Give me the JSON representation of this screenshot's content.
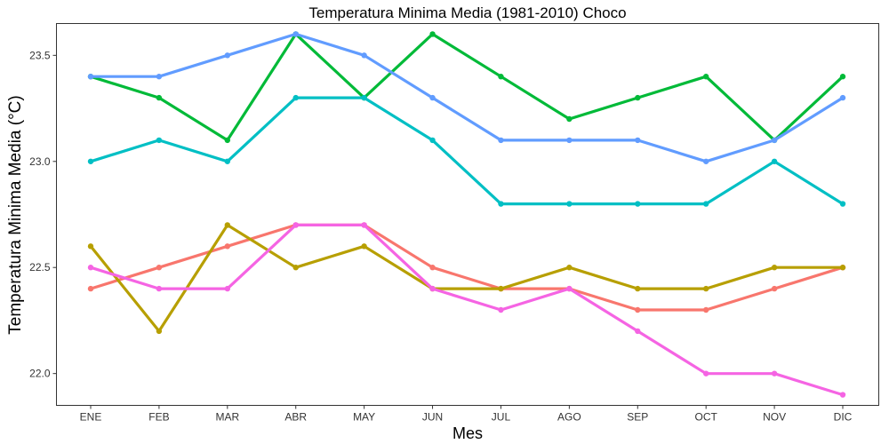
{
  "chart_data": {
    "type": "line",
    "title": "Temperatura Minima Media (1981-2010)  Choco",
    "xlabel": "Mes",
    "ylabel": "Temperatura Minima Media  (°C)",
    "categories": [
      "ENE",
      "FEB",
      "MAR",
      "ABR",
      "MAY",
      "JUN",
      "JUL",
      "AGO",
      "SEP",
      "OCT",
      "NOV",
      "DIC"
    ],
    "ylim": [
      21.85,
      23.65
    ],
    "yticks": [
      22.0,
      22.5,
      23.0,
      23.5
    ],
    "ytick_labels": [
      "22.0",
      "22.5",
      "23.0",
      "23.5"
    ],
    "grid": false,
    "legend": "none",
    "series": [
      {
        "color": "#f8766d",
        "values": [
          22.4,
          22.5,
          22.6,
          22.7,
          22.7,
          22.5,
          22.4,
          22.4,
          22.3,
          22.3,
          22.4,
          22.5
        ]
      },
      {
        "color": "#b79f00",
        "values": [
          22.6,
          22.2,
          22.7,
          22.5,
          22.6,
          22.4,
          22.4,
          22.5,
          22.4,
          22.4,
          22.5,
          22.5
        ]
      },
      {
        "color": "#00ba38",
        "values": [
          23.4,
          23.3,
          23.1,
          23.6,
          23.3,
          23.6,
          23.4,
          23.2,
          23.3,
          23.4,
          23.1,
          23.4
        ]
      },
      {
        "color": "#00bfc4",
        "values": [
          23.0,
          23.1,
          23.0,
          23.3,
          23.3,
          23.1,
          22.8,
          22.8,
          22.8,
          22.8,
          23.0,
          22.8
        ]
      },
      {
        "color": "#619cff",
        "values": [
          23.4,
          23.4,
          23.5,
          23.6,
          23.5,
          23.3,
          23.1,
          23.1,
          23.1,
          23.0,
          23.1,
          23.3
        ]
      },
      {
        "color": "#f564e3",
        "values": [
          22.5,
          22.4,
          22.4,
          22.7,
          22.7,
          22.4,
          22.3,
          22.4,
          22.2,
          22.0,
          22.0,
          21.9
        ]
      }
    ]
  }
}
